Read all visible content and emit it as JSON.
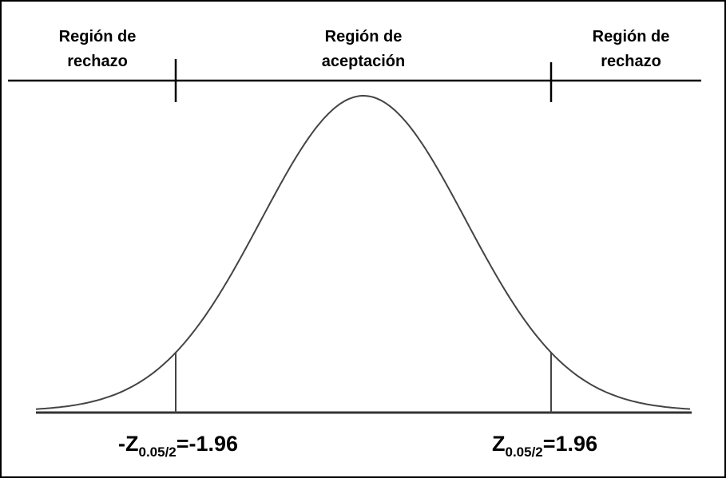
{
  "regions": [
    {
      "lines": [
        "Región de",
        "rechazo"
      ]
    },
    {
      "lines": [
        "Región de",
        "aceptación"
      ]
    },
    {
      "lines": [
        "Región de",
        "rechazo"
      ]
    }
  ],
  "critical_values": [
    {
      "symbol": "-Z",
      "subscript": "0.05/2",
      "equals": "=-1.96"
    },
    {
      "symbol": "Z",
      "subscript": "0.05/2",
      "equals": "=1.96"
    }
  ]
}
